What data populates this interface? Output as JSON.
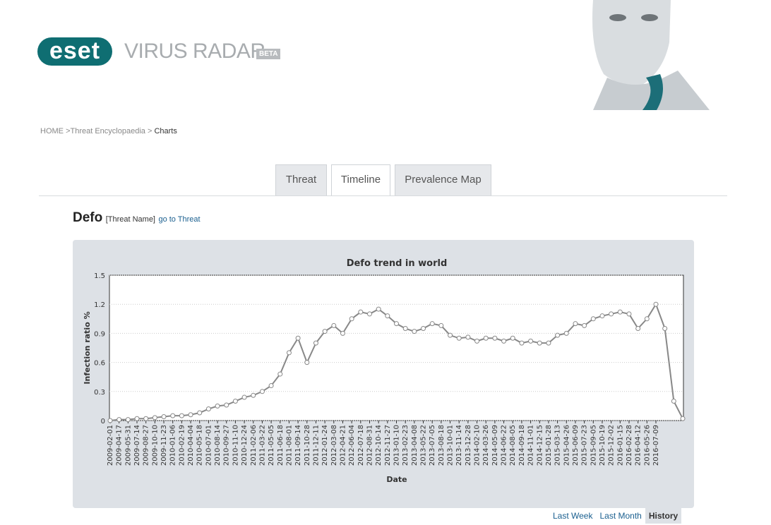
{
  "header": {
    "logo": "eset",
    "product": "VIRUS RADAR",
    "badge": "BETA"
  },
  "breadcrumb": {
    "items": [
      "HOME",
      "Threat Encyclopaedia",
      "Charts"
    ],
    "separator": ">"
  },
  "tabs": [
    "Threat",
    "Timeline",
    "Prevalence Map"
  ],
  "threat": {
    "name": "Defo",
    "note": "[Threat Name]",
    "link": "go to Threat"
  },
  "chart_data": {
    "type": "line",
    "title": "Defo trend in world",
    "x_label": "Date",
    "y_label": "Infection ratio %",
    "color": "#888888",
    "grid": true,
    "categories": [
      "2009-02-01",
      "2009-04-17",
      "2009-05-31",
      "2009-07-14",
      "2009-08-27",
      "2009-10-10",
      "2009-11-23",
      "2010-01-06",
      "2010-02-19",
      "2010-04-04",
      "2010-05-18",
      "2010-07-01",
      "2010-08-14",
      "2010-09-27",
      "2010-11-10",
      "2010-12-24",
      "2011-02-06",
      "2011-03-22",
      "2011-05-05",
      "2011-06-18",
      "2011-08-01",
      "2011-09-14",
      "2011-10-28",
      "2011-12-11",
      "2012-01-24",
      "2012-03-08",
      "2012-04-21",
      "2012-06-04",
      "2012-07-18",
      "2012-08-31",
      "2012-10-14",
      "2012-11-27",
      "2013-01-10",
      "2013-02-23",
      "2013-04-08",
      "2013-05-22",
      "2013-07-05",
      "2013-08-18",
      "2013-10-01",
      "2013-11-14",
      "2013-12-28",
      "2014-02-10",
      "2014-03-26",
      "2014-05-09",
      "2014-06-22",
      "2014-08-05",
      "2014-09-18",
      "2014-11-01",
      "2014-12-15",
      "2015-01-28",
      "2015-03-13",
      "2015-04-26",
      "2015-06-09",
      "2015-07-23",
      "2015-09-05",
      "2015-10-19",
      "2015-12-02",
      "2016-01-15",
      "2016-02-28",
      "2016-04-12",
      "2016-05-26",
      "2016-07-09",
      null,
      null,
      null
    ],
    "values": [
      0.0,
      0.01,
      0.01,
      0.02,
      0.02,
      0.03,
      0.04,
      0.05,
      0.05,
      0.06,
      0.08,
      0.12,
      0.15,
      0.16,
      0.2,
      0.24,
      0.26,
      0.3,
      0.36,
      0.48,
      0.7,
      0.85,
      0.6,
      0.8,
      0.92,
      0.98,
      0.9,
      1.05,
      1.12,
      1.1,
      1.15,
      1.08,
      1.0,
      0.95,
      0.92,
      0.95,
      1.0,
      0.98,
      0.88,
      0.85,
      0.86,
      0.82,
      0.85,
      0.85,
      0.82,
      0.85,
      0.8,
      0.82,
      0.8,
      0.8,
      0.88,
      0.9,
      1.0,
      0.98,
      1.05,
      1.08,
      1.1,
      1.12,
      1.1,
      0.95,
      1.05,
      1.2,
      0.95,
      0.2,
      0.02
    ],
    "ylim": [
      0,
      1.5
    ],
    "yticks": [
      0,
      0.3,
      0.6,
      0.9,
      1.2,
      1.5
    ]
  },
  "range_links": [
    "Last Week",
    "Last Month",
    "History"
  ]
}
